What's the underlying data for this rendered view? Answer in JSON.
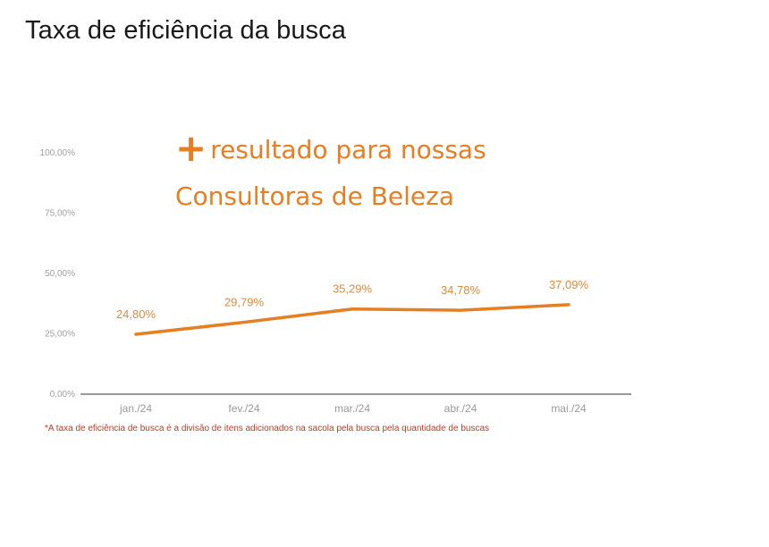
{
  "title": "Taxa de eficiência da busca",
  "headline": {
    "plus": "+",
    "line1": "resultado para nossas",
    "line2": "Consultoras de Beleza"
  },
  "footnote": "*A taxa de eficiência de busca é a divisão de itens adicionados na sacola  pela busca pela quantidade de buscas",
  "colors": {
    "line": "#e67e22",
    "headline": "#e67e22",
    "footnote": "#c0392b",
    "axis": "#333333"
  },
  "chart_data": {
    "type": "line",
    "categories": [
      "jan./24",
      "fev./24",
      "mar./24",
      "abr./24",
      "mai./24"
    ],
    "values": [
      24.8,
      29.79,
      35.29,
      34.78,
      37.09
    ],
    "data_labels": [
      "24,80%",
      "29,79%",
      "35,29%",
      "34,78%",
      "37,09%"
    ],
    "ylim": [
      0,
      100
    ],
    "yticks": [
      0,
      25,
      50,
      75,
      100
    ],
    "ytick_labels": [
      "0,00%",
      "25,00%",
      "50,00%",
      "75,00%",
      "100,00%"
    ],
    "title": "Taxa de eficiência da busca",
    "xlabel": "",
    "ylabel": "",
    "grid": false,
    "legend": "none"
  }
}
